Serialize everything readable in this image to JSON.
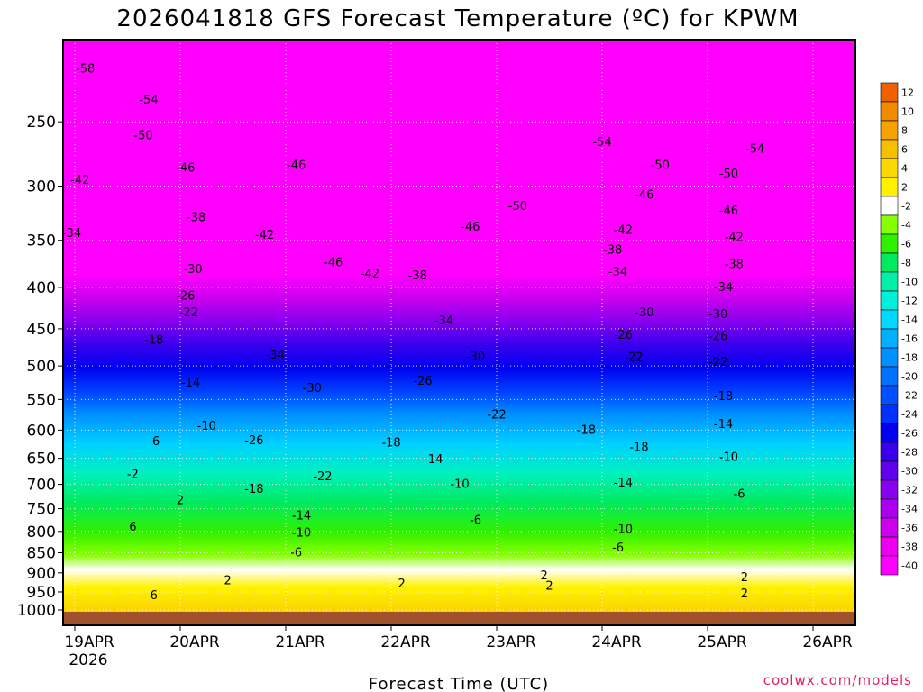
{
  "chart_data": {
    "type": "heatmap",
    "title": "2026041818 GFS Forecast Temperature (ºC) for KPWM",
    "xlabel": "Forecast Time (UTC)",
    "ylabel": "",
    "x_tick_labels": [
      "19APR",
      "20APR",
      "21APR",
      "22APR",
      "23APR",
      "24APR",
      "25APR",
      "26APR"
    ],
    "x_year_label": "2026",
    "x_range_days": [
      0,
      7.5
    ],
    "y_scale": "log",
    "y_reversed": true,
    "y_tick_labels": [
      250,
      300,
      350,
      400,
      450,
      500,
      550,
      600,
      650,
      700,
      750,
      800,
      850,
      900,
      950,
      1000
    ],
    "y_range_hpa": [
      200,
      1000
    ],
    "grid": true,
    "colorbar": {
      "position": "right",
      "levels": [
        12,
        10,
        8,
        6,
        4,
        2,
        -2,
        -4,
        -6,
        -8,
        -10,
        -12,
        -14,
        -16,
        -18,
        -20,
        -22,
        -24,
        -26,
        -28,
        -30,
        -32,
        -34,
        -36,
        -38,
        -40
      ],
      "colors": [
        "#f06000",
        "#f08a00",
        "#f5a300",
        "#f8be00",
        "#fbd700",
        "#fff200",
        "#ffffff",
        "#88ff00",
        "#30f000",
        "#00ea60",
        "#00f0aa",
        "#00f0dd",
        "#00d8ff",
        "#00b0ff",
        "#0090ff",
        "#0070ff",
        "#0050ff",
        "#0030ff",
        "#0000ee",
        "#3a00ee",
        "#6000ee",
        "#8800ee",
        "#aa00ee",
        "#cc00ee",
        "#ee00ee",
        "#ff00ff"
      ]
    },
    "contour_labels": [
      {
        "value": "-58",
        "day": 0.1,
        "hpa": 215
      },
      {
        "value": "-54",
        "day": 0.7,
        "hpa": 235
      },
      {
        "value": "-50",
        "day": 0.65,
        "hpa": 260
      },
      {
        "value": "-46",
        "day": 1.05,
        "hpa": 285
      },
      {
        "value": "-42",
        "day": 0.05,
        "hpa": 295
      },
      {
        "value": "-38",
        "day": 1.15,
        "hpa": 328
      },
      {
        "value": "-34",
        "day": -0.03,
        "hpa": 343
      },
      {
        "value": "-30",
        "day": 1.12,
        "hpa": 380
      },
      {
        "value": "-26",
        "day": 1.05,
        "hpa": 410
      },
      {
        "value": "-22",
        "day": 1.08,
        "hpa": 430
      },
      {
        "value": "-18",
        "day": 0.75,
        "hpa": 465
      },
      {
        "value": "-14",
        "day": 1.1,
        "hpa": 525
      },
      {
        "value": "-10",
        "day": 1.25,
        "hpa": 593
      },
      {
        "value": "-6",
        "day": 0.75,
        "hpa": 620
      },
      {
        "value": "-2",
        "day": 0.55,
        "hpa": 680
      },
      {
        "value": "2",
        "day": 1.0,
        "hpa": 733
      },
      {
        "value": "6",
        "day": 0.55,
        "hpa": 790
      },
      {
        "value": "6",
        "day": 0.75,
        "hpa": 960
      },
      {
        "value": "-46",
        "day": 2.1,
        "hpa": 283
      },
      {
        "value": "-42",
        "day": 1.8,
        "hpa": 345
      },
      {
        "value": "-46",
        "day": 2.45,
        "hpa": 373
      },
      {
        "value": "-42",
        "day": 2.8,
        "hpa": 385
      },
      {
        "value": "-38",
        "day": 3.25,
        "hpa": 387
      },
      {
        "value": "-34",
        "day": 1.9,
        "hpa": 485
      },
      {
        "value": "-30",
        "day": 2.25,
        "hpa": 533
      },
      {
        "value": "-26",
        "day": 1.7,
        "hpa": 618
      },
      {
        "value": "-22",
        "day": 2.35,
        "hpa": 685
      },
      {
        "value": "-18",
        "day": 1.7,
        "hpa": 710
      },
      {
        "value": "-18",
        "day": 3.0,
        "hpa": 622
      },
      {
        "value": "-14",
        "day": 2.15,
        "hpa": 765
      },
      {
        "value": "-10",
        "day": 2.15,
        "hpa": 803
      },
      {
        "value": "-6",
        "day": 2.1,
        "hpa": 850
      },
      {
        "value": "2",
        "day": 1.45,
        "hpa": 920
      },
      {
        "value": "2",
        "day": 3.1,
        "hpa": 928
      },
      {
        "value": "-50",
        "day": 4.2,
        "hpa": 318
      },
      {
        "value": "-46",
        "day": 3.75,
        "hpa": 337
      },
      {
        "value": "-34",
        "day": 3.5,
        "hpa": 440
      },
      {
        "value": "-30",
        "day": 3.8,
        "hpa": 487
      },
      {
        "value": "-26",
        "day": 3.3,
        "hpa": 522
      },
      {
        "value": "-22",
        "day": 4.0,
        "hpa": 575
      },
      {
        "value": "-14",
        "day": 3.4,
        "hpa": 652
      },
      {
        "value": "-10",
        "day": 3.65,
        "hpa": 700
      },
      {
        "value": "-6",
        "day": 3.8,
        "hpa": 775
      },
      {
        "value": "2",
        "day": 4.45,
        "hpa": 907
      },
      {
        "value": "2",
        "day": 4.5,
        "hpa": 935
      },
      {
        "value": "-54",
        "day": 5.0,
        "hpa": 265
      },
      {
        "value": "-50",
        "day": 5.55,
        "hpa": 283
      },
      {
        "value": "-46",
        "day": 5.4,
        "hpa": 308
      },
      {
        "value": "-42",
        "day": 5.2,
        "hpa": 340
      },
      {
        "value": "-38",
        "day": 5.1,
        "hpa": 360
      },
      {
        "value": "-34",
        "day": 5.15,
        "hpa": 383
      },
      {
        "value": "-30",
        "day": 5.4,
        "hpa": 430
      },
      {
        "value": "-26",
        "day": 5.2,
        "hpa": 458
      },
      {
        "value": "-22",
        "day": 5.3,
        "hpa": 488
      },
      {
        "value": "-18",
        "day": 4.85,
        "hpa": 600
      },
      {
        "value": "-18",
        "day": 5.35,
        "hpa": 630
      },
      {
        "value": "-14",
        "day": 5.2,
        "hpa": 697
      },
      {
        "value": "-10",
        "day": 5.2,
        "hpa": 795
      },
      {
        "value": "-6",
        "day": 5.15,
        "hpa": 838
      },
      {
        "value": "-54",
        "day": 6.45,
        "hpa": 270
      },
      {
        "value": "-50",
        "day": 6.2,
        "hpa": 290
      },
      {
        "value": "-46",
        "day": 6.2,
        "hpa": 322
      },
      {
        "value": "-42",
        "day": 6.25,
        "hpa": 347
      },
      {
        "value": "-38",
        "day": 6.25,
        "hpa": 375
      },
      {
        "value": "-34",
        "day": 6.15,
        "hpa": 400
      },
      {
        "value": "-30",
        "day": 6.1,
        "hpa": 432
      },
      {
        "value": "-26",
        "day": 6.1,
        "hpa": 460
      },
      {
        "value": "-22",
        "day": 6.1,
        "hpa": 495
      },
      {
        "value": "-18",
        "day": 6.15,
        "hpa": 545
      },
      {
        "value": "-14",
        "day": 6.15,
        "hpa": 590
      },
      {
        "value": "-10",
        "day": 6.2,
        "hpa": 648
      },
      {
        "value": "-6",
        "day": 6.3,
        "hpa": 720
      },
      {
        "value": "2",
        "day": 6.35,
        "hpa": 912
      },
      {
        "value": "2",
        "day": 6.35,
        "hpa": 955
      }
    ],
    "credit": "coolwx.com/models"
  }
}
